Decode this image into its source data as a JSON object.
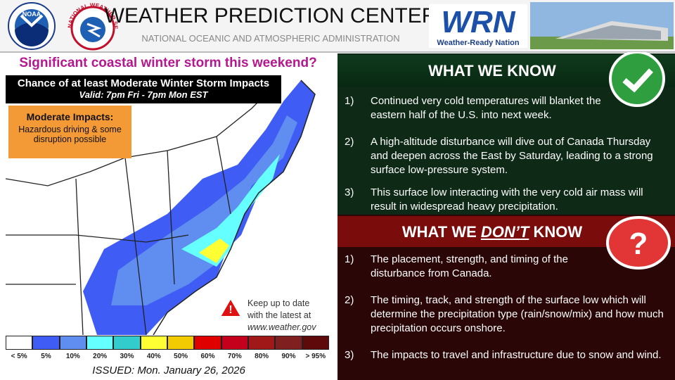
{
  "header": {
    "title": "WEATHER PREDICTION CENTER",
    "subtitle": "NATIONAL OCEANIC AND ATMOSPHERIC ADMINISTRATION",
    "noaa_logo": "NOAA",
    "nws_logo": "NATIONAL WEATHER SERVICE",
    "wrn_logo": {
      "mark": "WRN",
      "caption": "Weather-Ready Nation"
    }
  },
  "map_panel": {
    "headline": "Significant coastal winter storm this weekend?",
    "map_title": "Chance of at least Moderate Winter Storm Impacts",
    "valid": "Valid: 7pm Fri - 7pm Mon EST",
    "impact_box": {
      "title": "Moderate Impacts:",
      "text": "Hazardous driving & some disruption possible"
    },
    "note": {
      "lines": [
        "Keep up to date",
        "with the latest at",
        "www.weather.gov"
      ]
    },
    "legend": [
      {
        "label": "< 5%",
        "color": "#ffffff"
      },
      {
        "label": "5%",
        "color": "#3f5cf5"
      },
      {
        "label": "10%",
        "color": "#5f8ef0"
      },
      {
        "label": "20%",
        "color": "#66ffff"
      },
      {
        "label": "30%",
        "color": "#33cccc"
      },
      {
        "label": "40%",
        "color": "#ffff33"
      },
      {
        "label": "50%",
        "color": "#f2cc00"
      },
      {
        "label": "60%",
        "color": "#e00000"
      },
      {
        "label": "70%",
        "color": "#c4001c"
      },
      {
        "label": "80%",
        "color": "#a11818"
      },
      {
        "label": "90%",
        "color": "#7f1f1f"
      },
      {
        "label": "> 95%",
        "color": "#5e0a0a"
      }
    ],
    "issued": "ISSUED: Mon. January 26, 2026"
  },
  "know": {
    "title": "WHAT WE KNOW",
    "items": [
      {
        "number": "1)",
        "text": "Continued very cold temperatures will blanket the eastern half of the U.S. into next week."
      },
      {
        "number": "2)",
        "text": "A high-altitude disturbance will dive out of Canada Thursday and deepen across the East by Saturday, leading to a strong surface low-pressure system."
      },
      {
        "number": "3)",
        "text": "This surface low interacting with the very cold air mass will result in widespread heavy precipitation."
      }
    ]
  },
  "dont_know": {
    "title": [
      "WHAT WE ",
      "DON’T",
      " KNOW"
    ],
    "items": [
      {
        "number": "1)",
        "text": "The placement, strength, and timing of the disturbance from Canada."
      },
      {
        "number": "2)",
        "text": "The timing, track, and strength of the surface low which will determine the precipitation type (rain/snow/mix) and how much precipitation occurs onshore."
      },
      {
        "number": "3)",
        "text": "The impacts to travel and infrastructure due to snow and wind."
      }
    ]
  }
}
